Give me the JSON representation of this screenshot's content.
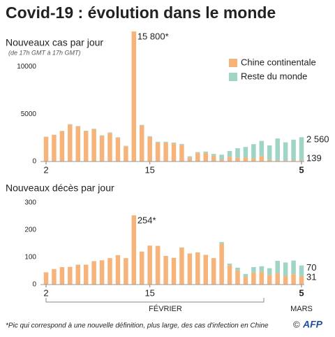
{
  "header": {
    "title": "Covid-19 : évolution dans le monde"
  },
  "chart_data": [
    {
      "type": "stacked_bar",
      "title": "Nouveaux cas par jour",
      "subtitle": "(de 17h GMT à 17h GMT)",
      "categories": [
        "2",
        null,
        null,
        null,
        null,
        null,
        null,
        null,
        null,
        null,
        null,
        null,
        null,
        "15",
        null,
        null,
        null,
        null,
        null,
        null,
        null,
        null,
        null,
        null,
        null,
        null,
        null,
        null,
        null,
        null,
        null,
        null,
        "5"
      ],
      "series": [
        {
          "name": "Chine continentale",
          "color": "#f6b47a",
          "values": [
            2600,
            2800,
            3200,
            3900,
            3700,
            3200,
            3400,
            2700,
            3000,
            2500,
            1600,
            15800,
            3800,
            2600,
            2000,
            2000,
            1900,
            1750,
            400,
            900,
            900,
            600,
            220,
            500,
            400,
            430,
            330,
            570,
            200,
            125,
            120,
            140,
            139
          ]
        },
        {
          "name": "Reste du monde",
          "color": "#9fd4c6",
          "values": [
            20,
            20,
            30,
            30,
            40,
            40,
            50,
            60,
            60,
            50,
            50,
            50,
            60,
            70,
            80,
            80,
            100,
            100,
            150,
            100,
            150,
            200,
            500,
            600,
            1000,
            1100,
            1500,
            1600,
            1500,
            2300,
            1900,
            2160,
            2421
          ]
        }
      ],
      "ylim": [
        0,
        13700
      ],
      "yticks": [
        0,
        5000,
        10000
      ],
      "peak_label": "15 800*",
      "end_labels": [
        "2 560",
        "139"
      ]
    },
    {
      "type": "stacked_bar",
      "title": "Nouveaux décès par jour",
      "categories": [
        "2",
        null,
        null,
        null,
        null,
        null,
        null,
        null,
        null,
        null,
        null,
        null,
        null,
        "15",
        null,
        null,
        null,
        null,
        null,
        null,
        null,
        null,
        null,
        null,
        null,
        null,
        null,
        null,
        null,
        null,
        null,
        null,
        "5"
      ],
      "series": [
        {
          "color": "#f6b47a",
          "values": [
            45,
            57,
            64,
            65,
            73,
            73,
            86,
            89,
            97,
            108,
            97,
            254,
            121,
            143,
            142,
            105,
            98,
            136,
            114,
            118,
            109,
            97,
            150,
            71,
            52,
            29,
            44,
            47,
            35,
            42,
            31,
            38,
            31
          ]
        },
        {
          "color": "#9fd4c6",
          "values": [
            0,
            0,
            0,
            0,
            0,
            0,
            0,
            0,
            0,
            0,
            0,
            0,
            0,
            0,
            0,
            0,
            0,
            0,
            0,
            0,
            0,
            0,
            6,
            6,
            10,
            10,
            20,
            20,
            25,
            45,
            50,
            50,
            39
          ]
        }
      ],
      "ylim": [
        0,
        300
      ],
      "yticks": [
        0,
        100,
        200,
        300
      ],
      "peak_label": "254*",
      "end_labels": [
        "70",
        "31"
      ]
    }
  ],
  "footer": {
    "month1": "FÉVRIER",
    "month2": "MARS",
    "note": "*Pic qui correspond à une nouvelle définition, plus large, des cas d'infection en Chine",
    "copyright": "©",
    "agency": "AFP"
  }
}
